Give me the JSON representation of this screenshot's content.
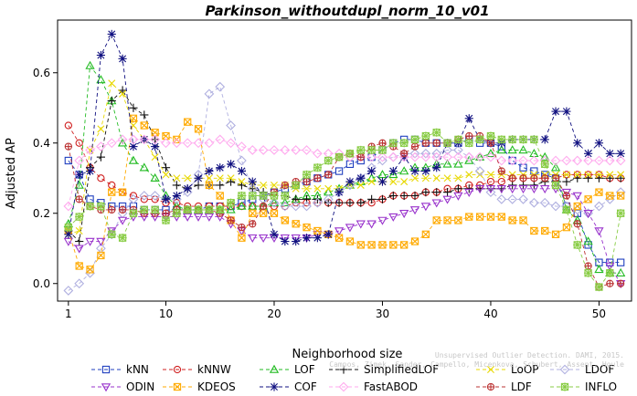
{
  "chart_data": {
    "type": "line",
    "title": "Parkinson_withoutdupl_norm_10_v01",
    "xlabel": "Neighborhood size",
    "ylabel": "Adjusted AP",
    "xlim": [
      0,
      53
    ],
    "ylim": [
      -0.05,
      0.75
    ],
    "xticks": [
      1,
      10,
      20,
      30,
      40,
      50
    ],
    "yticks": [
      0.0,
      0.2,
      0.4,
      0.6
    ],
    "ytick_labels": [
      "0.0",
      "0.2",
      "0.4",
      "0.6"
    ],
    "grid": false,
    "legend_position": "bottom",
    "credit": [
      "Unsupervised Outlier Detection. DAMI, 2015.",
      "Campos, Zimek, Sander, Campello, Micenkova, Schubert, Assent, Houle"
    ],
    "x": [
      1,
      2,
      3,
      4,
      5,
      6,
      7,
      8,
      9,
      10,
      11,
      12,
      13,
      14,
      15,
      16,
      17,
      18,
      19,
      20,
      21,
      22,
      23,
      24,
      25,
      26,
      27,
      28,
      29,
      30,
      31,
      32,
      33,
      34,
      35,
      36,
      37,
      38,
      39,
      40,
      41,
      42,
      43,
      44,
      45,
      46,
      47,
      48,
      49,
      50,
      51,
      52
    ],
    "series": [
      {
        "name": "kNN",
        "color": "#1f3fbf",
        "marker": "square",
        "values": [
          0.35,
          0.31,
          0.24,
          0.23,
          0.22,
          0.22,
          0.22,
          0.21,
          0.21,
          0.21,
          0.21,
          0.21,
          0.21,
          0.22,
          0.22,
          0.22,
          0.23,
          0.24,
          0.25,
          0.26,
          0.27,
          0.28,
          0.29,
          0.3,
          0.31,
          0.32,
          0.34,
          0.35,
          0.36,
          0.38,
          0.4,
          0.41,
          0.41,
          0.4,
          0.4,
          0.4,
          0.4,
          0.41,
          0.4,
          0.4,
          0.39,
          0.35,
          0.33,
          0.32,
          0.31,
          0.3,
          0.22,
          0.2,
          0.11,
          0.06,
          0.06,
          0.06
        ]
      },
      {
        "name": "kNNW",
        "color": "#d02020",
        "marker": "circle",
        "values": [
          0.45,
          0.4,
          0.33,
          0.3,
          0.28,
          0.26,
          0.25,
          0.24,
          0.24,
          0.23,
          0.23,
          0.22,
          0.22,
          0.22,
          0.22,
          0.22,
          0.22,
          0.22,
          0.22,
          0.22,
          0.22,
          0.23,
          0.23,
          0.23,
          0.23,
          0.23,
          0.23,
          0.23,
          0.23,
          0.24,
          0.25,
          0.25,
          0.25,
          0.26,
          0.26,
          0.27,
          0.27,
          0.28,
          0.28,
          0.29,
          0.29,
          0.3,
          0.3,
          0.3,
          0.3,
          0.3,
          0.31,
          0.31,
          0.31,
          0.31,
          0.3,
          0.3
        ]
      },
      {
        "name": "LOF",
        "color": "#22bb22",
        "marker": "triangle",
        "values": [
          0.17,
          0.28,
          0.62,
          0.58,
          0.52,
          0.4,
          0.35,
          0.33,
          0.3,
          0.25,
          0.22,
          0.21,
          0.21,
          0.21,
          0.21,
          0.21,
          0.22,
          0.22,
          0.22,
          0.23,
          0.23,
          0.24,
          0.25,
          0.25,
          0.26,
          0.27,
          0.28,
          0.29,
          0.3,
          0.31,
          0.31,
          0.32,
          0.33,
          0.33,
          0.34,
          0.34,
          0.34,
          0.35,
          0.36,
          0.37,
          0.38,
          0.38,
          0.38,
          0.37,
          0.36,
          0.33,
          0.21,
          0.18,
          0.12,
          0.04,
          0.03,
          0.03
        ]
      },
      {
        "name": "SimplifiedLOF",
        "color": "#111111",
        "marker": "plus",
        "values": [
          0.15,
          0.12,
          0.33,
          0.36,
          0.52,
          0.55,
          0.5,
          0.48,
          0.41,
          0.33,
          0.28,
          0.27,
          0.28,
          0.28,
          0.28,
          0.29,
          0.28,
          0.27,
          0.26,
          0.25,
          0.25,
          0.24,
          0.24,
          0.24,
          0.23,
          0.23,
          0.23,
          0.23,
          0.24,
          0.24,
          0.25,
          0.25,
          0.25,
          0.26,
          0.26,
          0.26,
          0.27,
          0.27,
          0.27,
          0.27,
          0.27,
          0.28,
          0.28,
          0.28,
          0.29,
          0.29,
          0.29,
          0.3,
          0.3,
          0.3,
          0.3,
          0.3
        ]
      },
      {
        "name": "LoOP",
        "color": "#e8d800",
        "marker": "cross",
        "values": [
          0.14,
          0.15,
          0.38,
          0.44,
          0.57,
          0.54,
          0.45,
          0.41,
          0.36,
          0.31,
          0.3,
          0.3,
          0.3,
          0.3,
          0.3,
          0.3,
          0.29,
          0.28,
          0.28,
          0.28,
          0.28,
          0.27,
          0.27,
          0.27,
          0.27,
          0.27,
          0.28,
          0.28,
          0.29,
          0.29,
          0.29,
          0.29,
          0.3,
          0.3,
          0.3,
          0.3,
          0.3,
          0.31,
          0.31,
          0.31,
          0.31,
          0.31,
          0.31,
          0.31,
          0.31,
          0.31,
          0.31,
          0.31,
          0.31,
          0.31,
          0.31,
          0.31
        ]
      },
      {
        "name": "LDOF",
        "color": "#b0b0e0",
        "marker": "diamond",
        "values": [
          -0.02,
          0.0,
          0.03,
          0.1,
          0.14,
          0.2,
          0.24,
          0.25,
          0.25,
          0.24,
          0.24,
          0.26,
          0.31,
          0.54,
          0.56,
          0.45,
          0.35,
          0.27,
          0.24,
          0.23,
          0.22,
          0.22,
          0.22,
          0.23,
          0.24,
          0.26,
          0.28,
          0.3,
          0.33,
          0.35,
          0.36,
          0.37,
          0.37,
          0.37,
          0.37,
          0.38,
          0.38,
          0.36,
          0.32,
          0.26,
          0.24,
          0.24,
          0.24,
          0.23,
          0.23,
          0.22,
          0.22,
          0.21,
          0.2,
          0.22,
          0.24,
          0.26
        ]
      },
      {
        "name": "ODIN",
        "color": "#9933cc",
        "marker": "triangle-down",
        "values": [
          0.12,
          0.1,
          0.12,
          0.12,
          0.15,
          0.18,
          0.19,
          0.19,
          0.19,
          0.19,
          0.19,
          0.19,
          0.19,
          0.19,
          0.19,
          0.17,
          0.15,
          0.13,
          0.13,
          0.13,
          0.13,
          0.13,
          0.13,
          0.14,
          0.14,
          0.15,
          0.16,
          0.17,
          0.17,
          0.18,
          0.19,
          0.2,
          0.21,
          0.22,
          0.23,
          0.24,
          0.25,
          0.26,
          0.27,
          0.27,
          0.27,
          0.27,
          0.27,
          0.27,
          0.27,
          0.27,
          0.26,
          0.25,
          0.2,
          0.15,
          0.05,
          0.0
        ]
      },
      {
        "name": "KDEOS",
        "color": "#ffaa00",
        "marker": "square-x",
        "values": [
          0.15,
          0.05,
          0.04,
          0.08,
          0.26,
          0.26,
          0.47,
          0.45,
          0.43,
          0.42,
          0.41,
          0.46,
          0.44,
          0.28,
          0.25,
          0.18,
          0.13,
          0.2,
          0.2,
          0.2,
          0.18,
          0.17,
          0.16,
          0.15,
          0.14,
          0.13,
          0.12,
          0.11,
          0.11,
          0.11,
          0.11,
          0.11,
          0.12,
          0.14,
          0.18,
          0.18,
          0.18,
          0.19,
          0.19,
          0.19,
          0.19,
          0.18,
          0.18,
          0.15,
          0.15,
          0.14,
          0.16,
          0.22,
          0.24,
          0.26,
          0.25,
          0.25
        ]
      },
      {
        "name": "COF",
        "color": "#101080",
        "marker": "asterisk",
        "values": [
          0.14,
          0.31,
          0.32,
          0.65,
          0.71,
          0.64,
          0.39,
          0.41,
          0.39,
          0.24,
          0.25,
          0.27,
          0.3,
          0.32,
          0.33,
          0.34,
          0.32,
          0.29,
          0.25,
          0.14,
          0.12,
          0.12,
          0.13,
          0.13,
          0.14,
          0.26,
          0.29,
          0.3,
          0.32,
          0.29,
          0.32,
          0.36,
          0.32,
          0.32,
          0.33,
          0.4,
          0.4,
          0.47,
          0.41,
          0.4,
          0.4,
          0.41,
          0.41,
          0.41,
          0.41,
          0.49,
          0.49,
          0.4,
          0.37,
          0.4,
          0.37,
          0.37
        ]
      },
      {
        "name": "FastABOD",
        "color": "#ffaaee",
        "marker": "diamond",
        "values": [
          0.22,
          0.35,
          0.38,
          0.39,
          0.4,
          0.41,
          0.41,
          0.41,
          0.41,
          0.4,
          0.4,
          0.4,
          0.4,
          0.4,
          0.41,
          0.4,
          0.39,
          0.38,
          0.38,
          0.38,
          0.38,
          0.38,
          0.38,
          0.37,
          0.37,
          0.37,
          0.36,
          0.36,
          0.36,
          0.36,
          0.36,
          0.36,
          0.36,
          0.36,
          0.36,
          0.36,
          0.36,
          0.36,
          0.36,
          0.36,
          0.35,
          0.35,
          0.35,
          0.35,
          0.35,
          0.35,
          0.35,
          0.35,
          0.35,
          0.35,
          0.35,
          0.35
        ]
      },
      {
        "name": "LDF",
        "color": "#bb3333",
        "marker": "circle-plus",
        "values": [
          0.39,
          0.24,
          0.22,
          0.21,
          0.21,
          0.21,
          0.21,
          0.2,
          0.2,
          0.2,
          0.21,
          0.21,
          0.21,
          0.21,
          0.2,
          0.18,
          0.16,
          0.17,
          0.22,
          0.26,
          0.28,
          0.29,
          0.29,
          0.3,
          0.31,
          0.36,
          0.37,
          0.36,
          0.39,
          0.4,
          0.39,
          0.37,
          0.39,
          0.4,
          0.4,
          0.4,
          0.41,
          0.42,
          0.42,
          0.4,
          0.32,
          0.3,
          0.3,
          0.3,
          0.3,
          0.3,
          0.25,
          0.17,
          0.05,
          -0.01,
          0.0,
          0.0
        ]
      },
      {
        "name": "INFLO",
        "color": "#88cc44",
        "marker": "star",
        "values": [
          0.16,
          0.19,
          0.22,
          0.22,
          0.14,
          0.13,
          0.2,
          0.21,
          0.21,
          0.18,
          0.2,
          0.21,
          0.21,
          0.21,
          0.21,
          0.23,
          0.25,
          0.25,
          0.25,
          0.25,
          0.25,
          0.28,
          0.31,
          0.33,
          0.35,
          0.36,
          0.37,
          0.38,
          0.38,
          0.38,
          0.4,
          0.4,
          0.41,
          0.42,
          0.43,
          0.4,
          0.41,
          0.4,
          0.41,
          0.42,
          0.41,
          0.41,
          0.41,
          0.41,
          0.34,
          0.28,
          0.21,
          0.11,
          0.03,
          -0.01,
          0.03,
          0.2
        ]
      }
    ]
  }
}
